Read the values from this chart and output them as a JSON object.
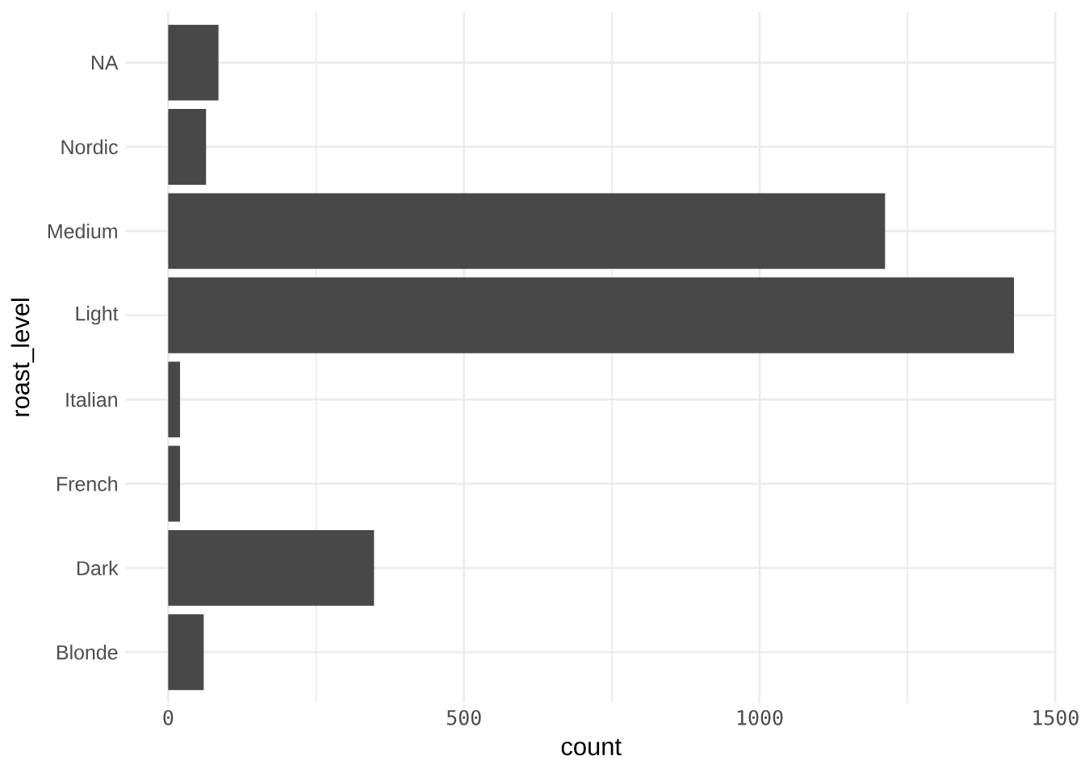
{
  "chart_data": {
    "type": "bar",
    "orientation": "horizontal",
    "xlabel": "count",
    "ylabel": "roast_level",
    "categories": [
      "NA",
      "Nordic",
      "Medium",
      "Light",
      "Italian",
      "French",
      "Dark",
      "Blonde"
    ],
    "values": [
      85,
      64,
      1212,
      1430,
      20,
      20,
      348,
      60
    ],
    "color": "#484848",
    "xlim": [
      -72,
      1502
    ],
    "xticks": [
      0,
      {
        "value": 250,
        "label": null
      },
      500,
      {
        "value": 750,
        "label": null
      },
      1000,
      {
        "value": 1250,
        "label": null
      },
      1500
    ],
    "grid": true
  }
}
